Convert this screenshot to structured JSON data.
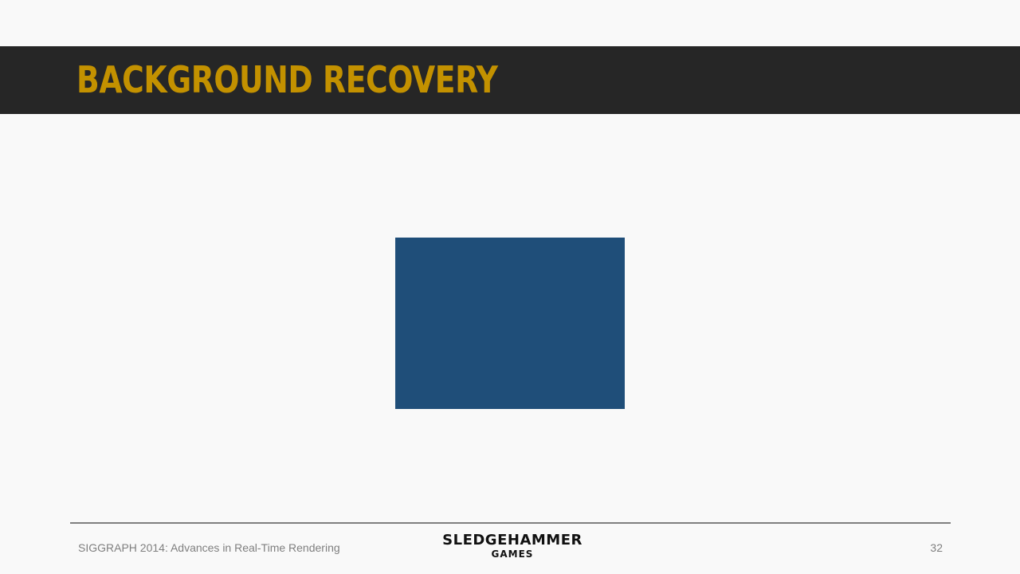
{
  "slide": {
    "title": "BACKGROUND RECOVERY",
    "placeholder_color": "#1f4e79"
  },
  "footer": {
    "conference": "SIGGRAPH 2014: Advances in Real-Time Rendering",
    "logo_line1": "SLEDGEHAMMER",
    "logo_line2": "GAMES",
    "page_number": "32"
  },
  "colors": {
    "title_bar": "#262626",
    "title_text": "#c39100",
    "background": "#f9f9f9",
    "footer_text": "#7f7f7f"
  }
}
